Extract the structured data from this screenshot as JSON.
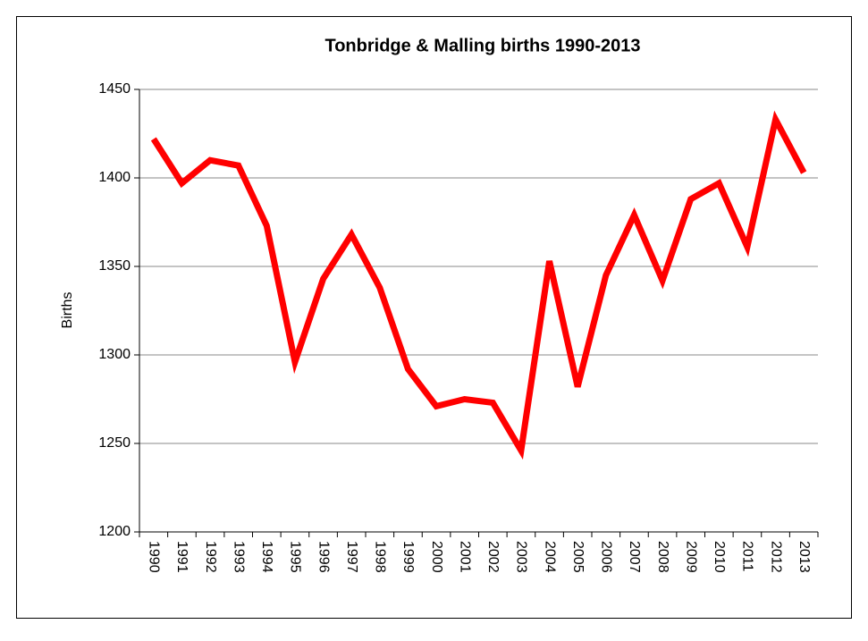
{
  "chart_data": {
    "type": "line",
    "title": "Tonbridge & Malling births 1990-2013",
    "y_label": "Births",
    "categories": [
      "1990",
      "1991",
      "1992",
      "1993",
      "1994",
      "1995",
      "1996",
      "1997",
      "1998",
      "1999",
      "2000",
      "2001",
      "2002",
      "2003",
      "2004",
      "2005",
      "2006",
      "2007",
      "2008",
      "2009",
      "2010",
      "2011",
      "2012",
      "2013"
    ],
    "series": [
      {
        "name": "Births",
        "color": "#ff0000",
        "values": [
          1422,
          1397,
          1410,
          1407,
          1373,
          1296,
          1343,
          1368,
          1338,
          1292,
          1271,
          1275,
          1273,
          1246,
          1353,
          1282,
          1345,
          1379,
          1342,
          1388,
          1397,
          1361,
          1433,
          1403
        ]
      }
    ],
    "ylim": [
      1200,
      1450
    ],
    "yticks": [
      1200,
      1250,
      1300,
      1350,
      1400,
      1450
    ],
    "grid": true
  }
}
